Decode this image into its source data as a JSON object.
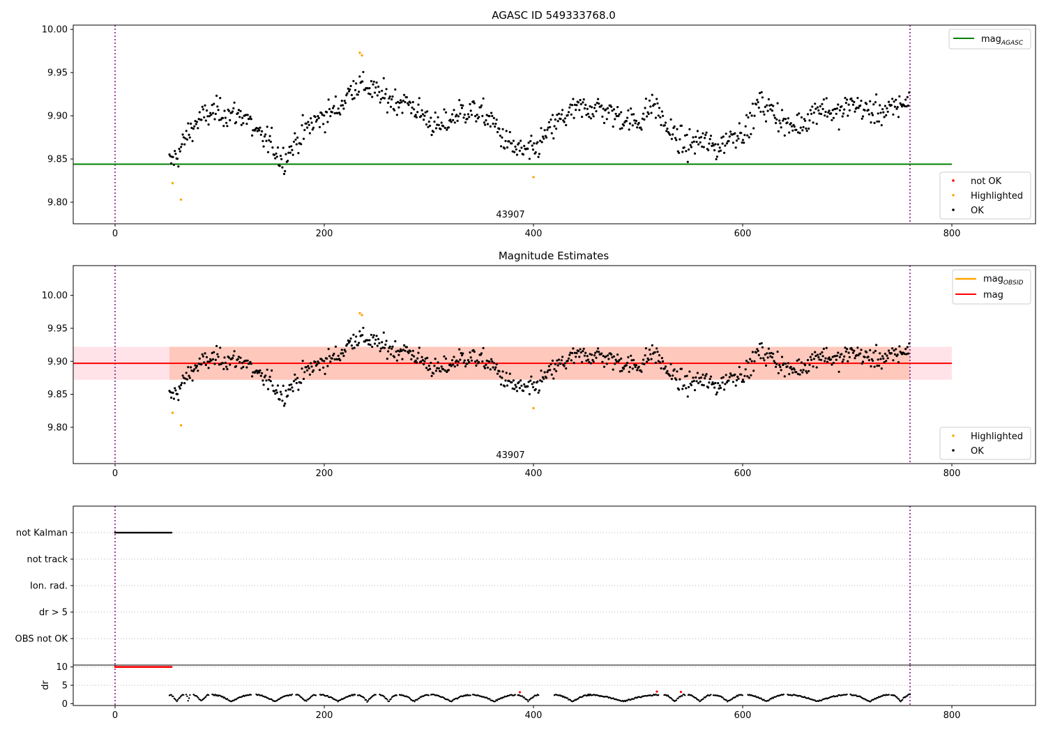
{
  "chart_data": [
    {
      "type": "scatter",
      "title": "AGASC ID 549333768.0",
      "xlim": [
        -40,
        880
      ],
      "ylim": [
        9.775,
        10.005
      ],
      "xticks": [
        0,
        200,
        400,
        600,
        800
      ],
      "yticks": [
        9.8,
        9.85,
        9.9,
        9.95,
        10.0
      ],
      "ytick_labels": [
        "9.80",
        "9.85",
        "9.90",
        "9.95",
        "10.00"
      ],
      "obsid_label": "43907",
      "vlines": [
        0,
        760
      ],
      "hline": {
        "name": "mag_AGASC",
        "label_main": "mag",
        "label_sub": "AGASC",
        "y": 9.844,
        "x_range": [
          -40,
          800
        ],
        "color": "#008000"
      },
      "legend_upper": [
        {
          "label_main": "mag",
          "label_sub": "AGASC",
          "color": "#008000"
        }
      ],
      "legend_lower": [
        {
          "label": "not OK",
          "color": "#ff0000"
        },
        {
          "label": "Highlighted",
          "color": "#ffa500"
        },
        {
          "label": "OK",
          "color": "#000000"
        }
      ],
      "highlighted": [
        [
          55,
          9.822
        ],
        [
          63,
          9.803
        ],
        [
          234,
          9.973
        ],
        [
          236,
          9.97
        ],
        [
          400,
          9.829
        ]
      ]
    },
    {
      "type": "scatter",
      "title": "Magnitude Estimates",
      "xlim": [
        -40,
        880
      ],
      "ylim": [
        9.745,
        10.045
      ],
      "xticks": [
        0,
        200,
        400,
        600,
        800
      ],
      "yticks": [
        9.8,
        9.85,
        9.9,
        9.95,
        10.0
      ],
      "ytick_labels": [
        "9.80",
        "9.85",
        "9.90",
        "9.95",
        "10.00"
      ],
      "obsid_label": "43907",
      "vlines": [
        0,
        760
      ],
      "mag_line": {
        "label": "mag",
        "y": 9.897,
        "color": "#ff0000"
      },
      "mag_obsid": {
        "label_main": "mag",
        "label_sub": "OBSID",
        "color": "#ffa500"
      },
      "band": {
        "y0": 9.872,
        "y1": 9.922,
        "x_range": [
          -40,
          800
        ]
      },
      "legend_upper": [
        {
          "label_main": "mag",
          "label_sub": "OBSID",
          "color": "#ffa500"
        },
        {
          "label": "mag",
          "color": "#ff0000"
        }
      ],
      "legend_lower": [
        {
          "label": "Highlighted",
          "color": "#ffa500"
        },
        {
          "label": "OK",
          "color": "#000000"
        }
      ]
    },
    {
      "type": "scatter",
      "title": "",
      "xlim": [
        -40,
        880
      ],
      "xticks": [
        0,
        200,
        400,
        600,
        800
      ],
      "vlines": [
        0,
        760
      ],
      "flag_rows": [
        "not Kalman",
        "not track",
        "Ion. rad.",
        "dr > 5",
        "OBS not OK"
      ],
      "not_kalman_range": [
        0,
        54
      ],
      "dr": {
        "ylabel": "dr",
        "ylim": [
          -0.5,
          10.5
        ],
        "yticks": [
          0,
          5,
          10
        ],
        "yticks_labels": [
          "0",
          "5",
          "10"
        ],
        "clip_value": 10,
        "clip_range": [
          0,
          54
        ],
        "red_points": [
          [
            387,
            3.1
          ],
          [
            518,
            3.3
          ],
          [
            541,
            3.2
          ]
        ]
      }
    }
  ]
}
